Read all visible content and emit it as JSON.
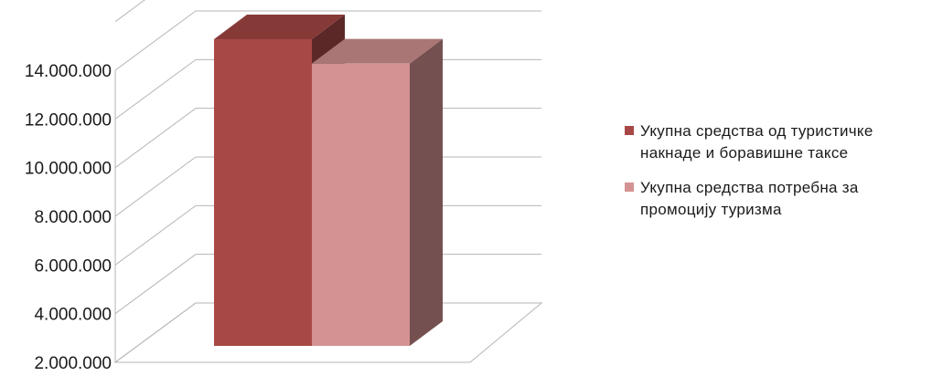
{
  "chart_data": {
    "type": "bar",
    "style": "3d-clustered-column",
    "title": "",
    "xlabel": "",
    "ylabel": "",
    "categories": [
      ""
    ],
    "series": [
      {
        "name": "Укупна средства од туристичке накнаде и боравишне таксе",
        "values": [
          14600000
        ],
        "color": "#a84846"
      },
      {
        "name": "Укупна средства потребна за промоцију туризма",
        "values": [
          13600000
        ],
        "color": "#d49292"
      }
    ],
    "ylim": [
      2000000,
      14000000
    ],
    "yticks": [
      "2.000.000",
      "4.000.000",
      "6.000.000",
      "8.000.000",
      "10.000.000",
      "12.000.000",
      "14.000.000"
    ],
    "grid": true,
    "legend_position": "right"
  }
}
